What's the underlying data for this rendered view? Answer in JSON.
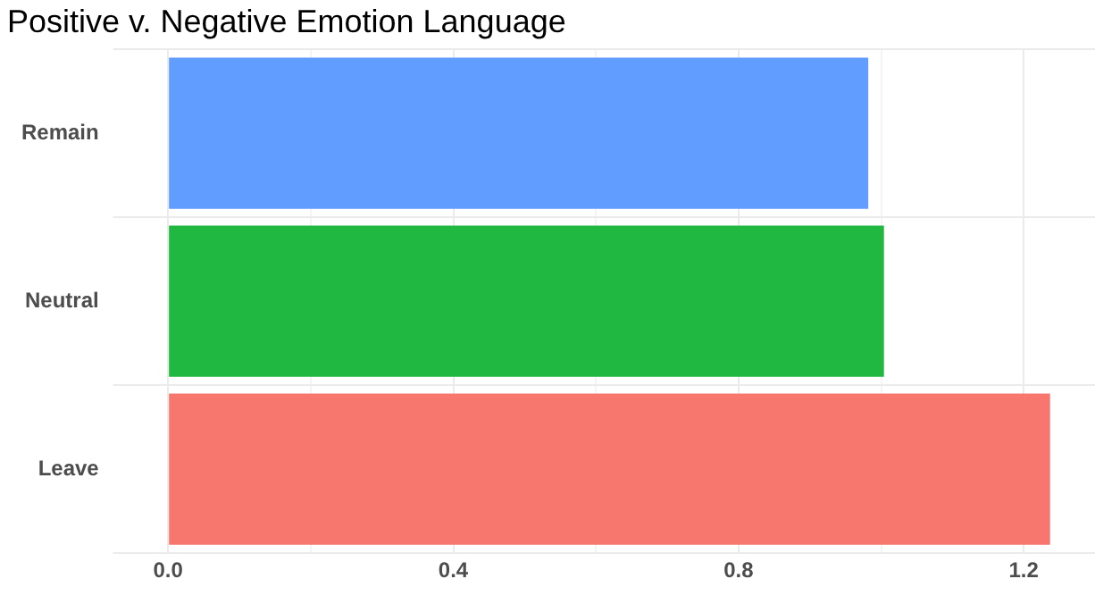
{
  "chart_data": {
    "type": "bar",
    "orientation": "horizontal",
    "title": "Positive v. Negative Emotion Language",
    "categories": [
      "Remain",
      "Neutral",
      "Leave"
    ],
    "values": [
      0.982,
      1.004,
      1.237
    ],
    "colors": [
      "#619cff",
      "#21b842",
      "#f7776f"
    ],
    "xlim": [
      -0.062,
      1.3
    ],
    "xticks": [
      {
        "value": 0,
        "label": "0.0"
      },
      {
        "value": 0.2,
        "label": null
      },
      {
        "value": 0.4,
        "label": "0.4"
      },
      {
        "value": 0.6,
        "label": null
      },
      {
        "value": 0.8,
        "label": "0.8"
      },
      {
        "value": 1.0,
        "label": null
      },
      {
        "value": 1.2,
        "label": "1.2"
      }
    ],
    "grid": true,
    "legend": false
  }
}
